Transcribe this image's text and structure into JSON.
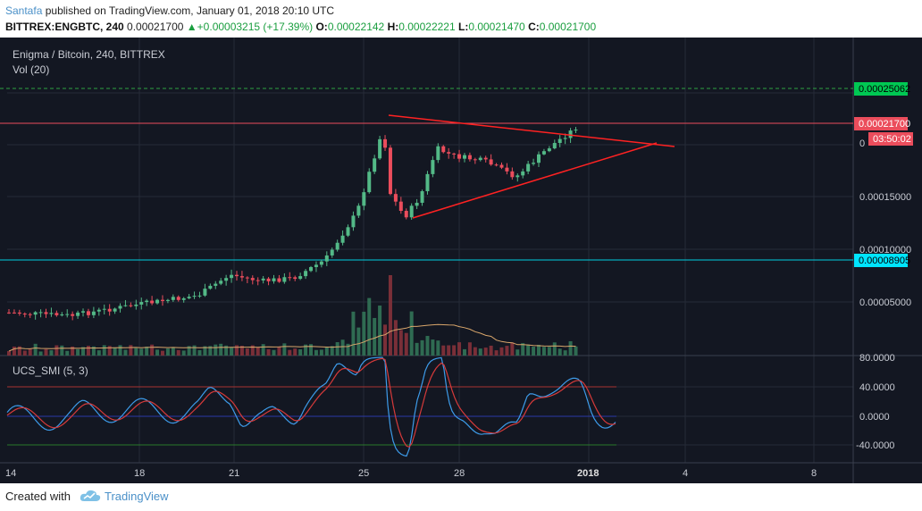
{
  "header": {
    "author": "Santafa",
    "published_text": "published on TradingView.com, January 01, 2018 20:10 UTC",
    "symbol": "BITTREX:ENGBTC, 240",
    "last_price": "0.00021700",
    "change_arrow": "▲",
    "change": "+0.00003215 (+17.39%)",
    "o_label": "O:",
    "o_value": "0.00022142",
    "h_label": "H:",
    "h_value": "0.00022221",
    "l_label": "L:",
    "l_value": "0.00021470",
    "c_label": "C:",
    "c_value": "0.00021700"
  },
  "chart": {
    "pair_title": "Enigma / Bitcoin, 240, BITTREX",
    "volume_label": "Vol (20)",
    "oscillator_label": "UCS_SMI (5, 3)",
    "colors": {
      "background": "#131722",
      "up": "#53b987",
      "down": "#eb4d5c",
      "trendline": "#ff2222",
      "volume_ma": "#d9a66b",
      "smi_k": "#3d9be9",
      "smi_d": "#d63a3a",
      "level_green": "#2ea043",
      "level_cyan": "#00e5ff",
      "level_red": "#eb4d5c"
    },
    "price_axis_labels": [
      "0.00015000",
      "0.00010000",
      "0.00005000"
    ],
    "price_tag_green": "0.00025062",
    "price_tag_current": "0.00021700",
    "price_tag_timer": "03:50:02",
    "price_tag_partial": "0",
    "price_tag_cyan": "0.00008905",
    "osc_axis_labels": [
      "80.0000",
      "40.0000",
      "0.0000",
      "-40.0000"
    ],
    "time_labels": [
      "14",
      "18",
      "21",
      "25",
      "28",
      "2018",
      "4",
      "8"
    ]
  },
  "chart_data": {
    "type": "candlestick",
    "title": "Enigma / Bitcoin, 240, BITTREX",
    "x_range": [
      "2017-12-14",
      "2018-01-09"
    ],
    "price_range": [
      0.0,
      0.00027
    ],
    "horizontal_levels": [
      {
        "value": 0.00025062,
        "style": "dashed",
        "color": "#2ea043"
      },
      {
        "value": 0.000217,
        "style": "solid",
        "color": "#eb4d5c"
      },
      {
        "value": 8.905e-05,
        "style": "solid",
        "color": "#00e5ff"
      }
    ],
    "pattern": "symmetrical triangle",
    "approx_close_path": [
      {
        "date": "2017-12-14",
        "close": 4.05e-05
      },
      {
        "date": "2017-12-16",
        "close": 3.75e-05
      },
      {
        "date": "2017-12-18",
        "close": 4.75e-05
      },
      {
        "date": "2017-12-20",
        "close": 5.65e-05
      },
      {
        "date": "2017-12-21",
        "close": 7.6e-05
      },
      {
        "date": "2017-12-22",
        "close": 7e-05
      },
      {
        "date": "2017-12-23",
        "close": 7.3e-05
      },
      {
        "date": "2017-12-24",
        "close": 9e-05
      },
      {
        "date": "2017-12-25",
        "close": 0.000135
      },
      {
        "date": "2017-12-25T20:00",
        "close": 0.000215
      },
      {
        "date": "2017-12-26",
        "close": 0.000155
      },
      {
        "date": "2017-12-26T12:00",
        "close": 0.00013
      },
      {
        "date": "2017-12-27",
        "close": 0.00015
      },
      {
        "date": "2017-12-27T12:00",
        "close": 0.000195
      },
      {
        "date": "2017-12-28",
        "close": 0.000188
      },
      {
        "date": "2017-12-29",
        "close": 0.000183
      },
      {
        "date": "2017-12-30",
        "close": 0.000168
      },
      {
        "date": "2017-12-31",
        "close": 0.000195
      },
      {
        "date": "2018-01-01",
        "close": 0.000217
      }
    ],
    "volume_ma_period": 20,
    "oscillator": {
      "name": "UCS_SMI (5, 3)",
      "ylim": [
        -60,
        90
      ],
      "levels": [
        40,
        0,
        -40
      ]
    }
  }
}
